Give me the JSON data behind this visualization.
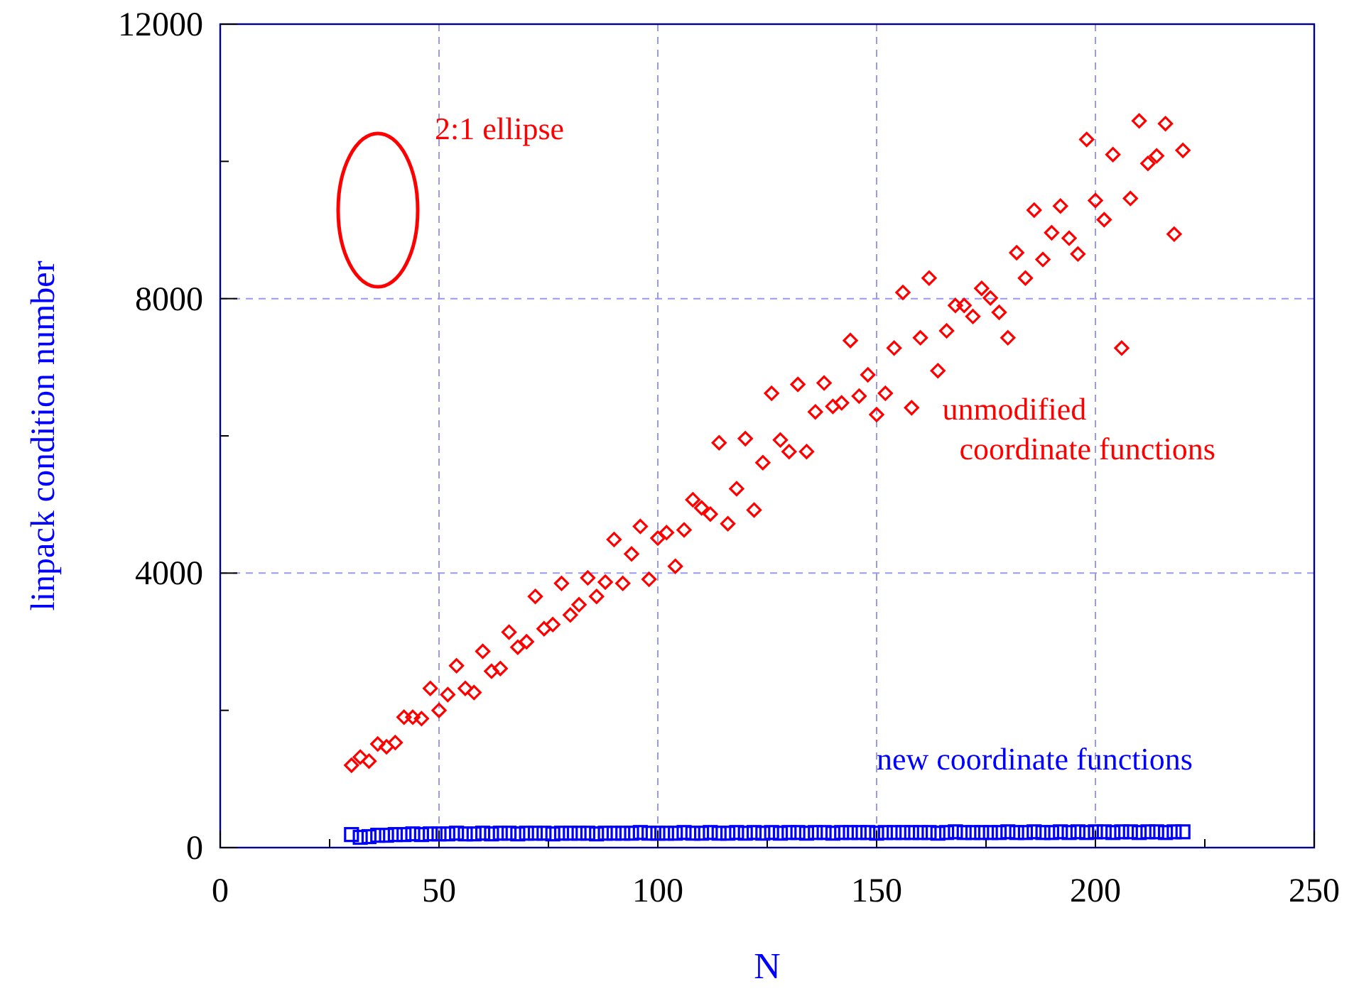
{
  "chart_data": {
    "type": "scatter",
    "xlabel": "N",
    "ylabel": "linpack condition number",
    "annotations": [
      "2:1 ellipse"
    ],
    "x": [
      30,
      32,
      34,
      36,
      38,
      40,
      42,
      44,
      46,
      48,
      50,
      52,
      54,
      56,
      58,
      60,
      62,
      64,
      66,
      68,
      70,
      72,
      74,
      76,
      78,
      80,
      82,
      84,
      86,
      88,
      90,
      92,
      94,
      96,
      98,
      100,
      102,
      104,
      106,
      108,
      110,
      112,
      114,
      116,
      118,
      120,
      122,
      124,
      126,
      128,
      130,
      132,
      134,
      136,
      138,
      140,
      142,
      144,
      146,
      148,
      150,
      152,
      154,
      156,
      158,
      160,
      162,
      164,
      166,
      168,
      170,
      172,
      174,
      176,
      178,
      180,
      182,
      184,
      186,
      188,
      190,
      192,
      194,
      196,
      198,
      200,
      202,
      204,
      206,
      208,
      210,
      212,
      214,
      216,
      218,
      220
    ],
    "series": [
      {
        "name": "unmodified coordinate functions",
        "color": "#ff0000",
        "marker": "diamond",
        "values": [
          1200,
          1320,
          1260,
          1510,
          1470,
          1530,
          1900,
          1900,
          1880,
          2320,
          2000,
          2230,
          2650,
          2320,
          2260,
          2860,
          2570,
          2610,
          3140,
          2920,
          3000,
          3660,
          3190,
          3250,
          3850,
          3390,
          3540,
          3930,
          3660,
          3870,
          4490,
          3850,
          4280,
          4680,
          3910,
          4510,
          4590,
          4100,
          4630,
          5070,
          4950,
          4860,
          5900,
          4720,
          5230,
          5960,
          4920,
          5610,
          6620,
          5940,
          5770,
          6750,
          5770,
          6350,
          6770,
          6430,
          6480,
          7390,
          6580,
          6890,
          6310,
          6620,
          7280,
          8090,
          6410,
          7430,
          8300,
          6950,
          7530,
          7900,
          7900,
          7740,
          8150,
          8010,
          7800,
          7430,
          8670,
          8300,
          9290,
          8570,
          8960,
          9350,
          8880,
          8650,
          10320,
          9430,
          9150,
          10100,
          7280,
          9460,
          10590,
          9970,
          10080,
          10550,
          8940,
          10160
        ]
      },
      {
        "name": "new coordinate functions",
        "color": "#0000ff",
        "marker": "square",
        "values": [
          190,
          150,
          160,
          180,
          180,
          190,
          190,
          200,
          190,
          200,
          200,
          200,
          210,
          200,
          200,
          210,
          200,
          210,
          210,
          200,
          210,
          210,
          210,
          200,
          210,
          210,
          210,
          210,
          200,
          210,
          210,
          210,
          210,
          220,
          210,
          210,
          210,
          210,
          220,
          210,
          210,
          220,
          210,
          210,
          220,
          210,
          220,
          210,
          220,
          210,
          220,
          220,
          210,
          220,
          220,
          210,
          220,
          220,
          220,
          220,
          210,
          220,
          220,
          220,
          220,
          220,
          220,
          210,
          220,
          230,
          220,
          220,
          220,
          220,
          220,
          230,
          220,
          220,
          230,
          220,
          220,
          230,
          220,
          230,
          220,
          230,
          230,
          220,
          230,
          230,
          220,
          230,
          230,
          220,
          230,
          230
        ]
      }
    ],
    "xlim": [
      0,
      250
    ],
    "xticks": [
      0,
      {
        "value": 25,
        "label": null
      },
      50,
      {
        "value": 75,
        "label": null
      },
      100,
      {
        "value": 125,
        "label": null
      },
      150,
      {
        "value": 175,
        "label": null
      },
      200,
      {
        "value": 225,
        "label": null
      },
      250
    ],
    "ylim": [
      0,
      12000
    ],
    "yticks": [
      0,
      {
        "value": 2000,
        "label": null
      },
      4000,
      {
        "value": 6000,
        "label": null
      },
      8000,
      {
        "value": 10000,
        "label": null
      },
      12000
    ],
    "grid": true
  }
}
